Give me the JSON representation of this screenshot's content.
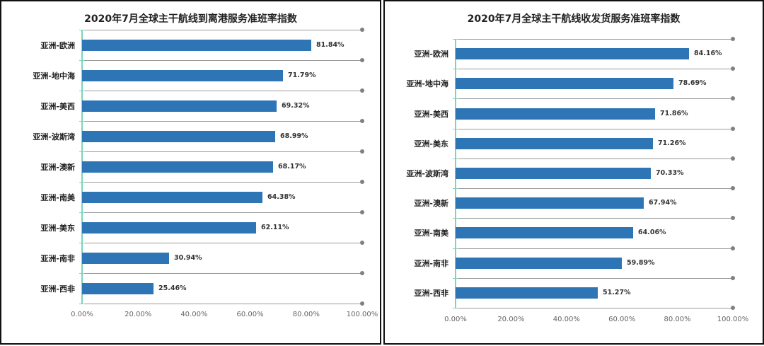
{
  "chart_data": [
    {
      "type": "bar",
      "orientation": "horizontal",
      "title": "2020年7月全球主干航线到离港服务准班率指数",
      "categories": [
        "亚洲-欧洲",
        "亚洲-地中海",
        "亚洲-美西",
        "亚洲-波斯湾",
        "亚洲-澳新",
        "亚洲-南美",
        "亚洲-美东",
        "亚洲-南非",
        "亚洲-西非"
      ],
      "values": [
        81.84,
        71.79,
        69.32,
        68.99,
        68.17,
        64.38,
        62.11,
        30.94,
        25.46
      ],
      "labels": [
        "81.84%",
        "71.79%",
        "69.32%",
        "68.99%",
        "68.17%",
        "64.38%",
        "62.11%",
        "30.94%",
        "25.46%"
      ],
      "xlabel": "",
      "ylabel": "",
      "xlim": [
        0,
        100
      ],
      "xticks": [
        "0.00%",
        "20.00%",
        "40.00%",
        "60.00%",
        "80.00%",
        "100.00%"
      ],
      "grid": true,
      "legend": "none",
      "color": "#2e75b6"
    },
    {
      "type": "bar",
      "orientation": "horizontal",
      "title": "2020年7月全球主干航线收发货服务准班率指数",
      "categories": [
        "亚洲-欧洲",
        "亚洲-地中海",
        "亚洲-美西",
        "亚洲-美东",
        "亚洲-波斯湾",
        "亚洲-澳新",
        "亚洲-南美",
        "亚洲-南非",
        "亚洲-西非"
      ],
      "values": [
        84.16,
        78.69,
        71.86,
        71.26,
        70.33,
        67.94,
        64.06,
        59.89,
        51.27
      ],
      "labels": [
        "84.16%",
        "78.69%",
        "71.86%",
        "71.26%",
        "70.33%",
        "67.94%",
        "64.06%",
        "59.89%",
        "51.27%"
      ],
      "xlabel": "",
      "ylabel": "",
      "xlim": [
        0,
        100
      ],
      "xticks": [
        "0.00%",
        "20.00%",
        "40.00%",
        "60.00%",
        "80.00%",
        "100.00%"
      ],
      "grid": true,
      "legend": "none",
      "color": "#2e75b6"
    }
  ]
}
